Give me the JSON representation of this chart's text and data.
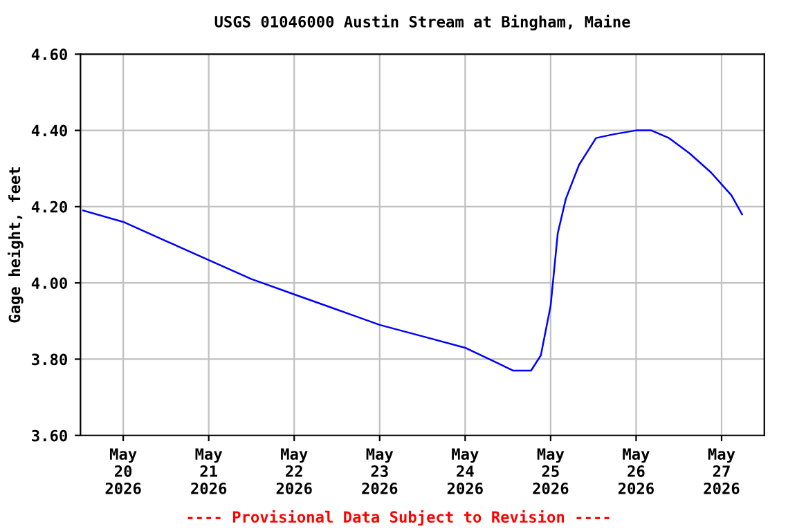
{
  "chart_data": {
    "type": "line",
    "title": "USGS 01046000 Austin Stream at Bingham, Maine",
    "ylabel": "Gage height, feet",
    "annotations": [
      "---- Provisional Data Subject to Revision ----"
    ],
    "series": [
      {
        "color": "#0000ff",
        "x": [
          "2026-05-19T12:45",
          "2026-05-20T00:00",
          "2026-05-20T12:00",
          "2026-05-21T00:00",
          "2026-05-21T12:00",
          "2026-05-22T00:00",
          "2026-05-22T12:00",
          "2026-05-23T00:00",
          "2026-05-23T12:00",
          "2026-05-24T00:00",
          "2026-05-24T09:00",
          "2026-05-24T13:30",
          "2026-05-24T18:30",
          "2026-05-24T21:15",
          "2026-05-25T00:00",
          "2026-05-25T02:00",
          "2026-05-25T04:15",
          "2026-05-25T08:00",
          "2026-05-25T12:45",
          "2026-05-25T17:45",
          "2026-05-26T00:00",
          "2026-05-26T04:15",
          "2026-05-26T09:15",
          "2026-05-26T15:00",
          "2026-05-26T21:00",
          "2026-05-27T02:45",
          "2026-05-27T05:45"
        ],
        "values": [
          4.19,
          4.16,
          4.11,
          4.06,
          4.01,
          3.97,
          3.93,
          3.89,
          3.86,
          3.83,
          3.79,
          3.77,
          3.77,
          3.81,
          3.94,
          4.13,
          4.22,
          4.31,
          4.38,
          4.39,
          4.4,
          4.4,
          4.38,
          4.34,
          4.29,
          4.23,
          4.18
        ]
      }
    ],
    "xlim": [
      "2026-05-19T12:00",
      "2026-05-27T12:00"
    ],
    "xticks": [
      {
        "value": "2026-05-20",
        "label": "May\n20\n2026"
      },
      {
        "value": "2026-05-21",
        "label": "May\n21\n2026"
      },
      {
        "value": "2026-05-22",
        "label": "May\n22\n2026"
      },
      {
        "value": "2026-05-23",
        "label": "May\n23\n2026"
      },
      {
        "value": "2026-05-24",
        "label": "May\n24\n2026"
      },
      {
        "value": "2026-05-25",
        "label": "May\n25\n2026"
      },
      {
        "value": "2026-05-26",
        "label": "May\n26\n2026"
      },
      {
        "value": "2026-05-27",
        "label": "May\n27\n2026"
      }
    ],
    "ylim": [
      3.6,
      4.6
    ],
    "yticks": [
      {
        "value": 3.6,
        "label": "3.60"
      },
      {
        "value": 3.8,
        "label": "3.80"
      },
      {
        "value": 4.0,
        "label": "4.00"
      },
      {
        "value": 4.2,
        "label": "4.20"
      },
      {
        "value": 4.4,
        "label": "4.40"
      },
      {
        "value": 4.6,
        "label": "4.60"
      }
    ],
    "grid": true,
    "legend": false,
    "marker": "none",
    "line_style": "solid"
  }
}
